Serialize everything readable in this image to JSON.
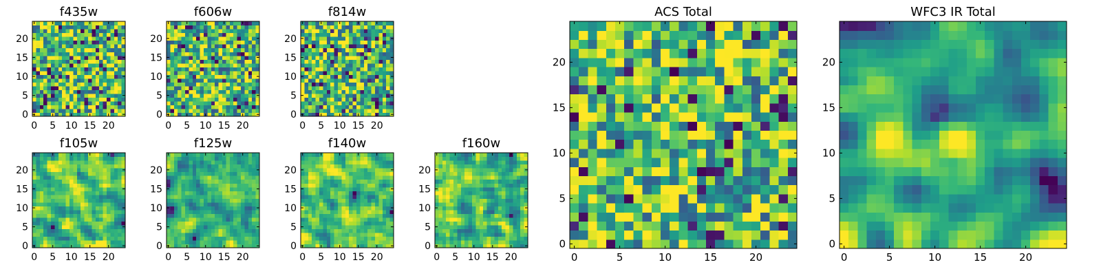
{
  "chart_data": {
    "type": "heatmap",
    "colormap": "viridis",
    "colors": {
      "low": "#440154",
      "mid": "#21918c",
      "high": "#fde725",
      "axis": "#000000"
    },
    "panels": [
      {
        "title": "f435w",
        "grid": 25,
        "xlim": [
          -0.5,
          24.5
        ],
        "ylim": [
          -0.5,
          24.5
        ],
        "xticks": [
          0,
          5,
          10,
          15,
          20
        ],
        "yticks": [
          0,
          5,
          10,
          15,
          20
        ],
        "seed": 435,
        "smooth": 0,
        "mean": 0.7
      },
      {
        "title": "f606w",
        "grid": 25,
        "xlim": [
          -0.5,
          24.5
        ],
        "ylim": [
          -0.5,
          24.5
        ],
        "xticks": [
          0,
          5,
          10,
          15,
          20
        ],
        "yticks": [
          0,
          5,
          10,
          15,
          20
        ],
        "seed": 606,
        "smooth": 0,
        "mean": 0.66
      },
      {
        "title": "f814w",
        "grid": 25,
        "xlim": [
          -0.5,
          24.5
        ],
        "ylim": [
          -0.5,
          24.5
        ],
        "xticks": [
          0,
          5,
          10,
          15,
          20
        ],
        "yticks": [
          0,
          5,
          10,
          15,
          20
        ],
        "seed": 814,
        "smooth": 0,
        "mean": 0.66
      },
      {
        "title": "f105w",
        "grid": 25,
        "xlim": [
          -0.5,
          24.5
        ],
        "ylim": [
          -0.5,
          24.5
        ],
        "xticks": [
          0,
          5,
          10,
          15,
          20
        ],
        "yticks": [
          0,
          5,
          10,
          15,
          20
        ],
        "seed": 105,
        "smooth": 1,
        "mean": 0.72
      },
      {
        "title": "f125w",
        "grid": 25,
        "xlim": [
          -0.5,
          24.5
        ],
        "ylim": [
          -0.5,
          24.5
        ],
        "xticks": [
          0,
          5,
          10,
          15,
          20
        ],
        "yticks": [
          0,
          5,
          10,
          15,
          20
        ],
        "seed": 125,
        "smooth": 1,
        "mean": 0.68
      },
      {
        "title": "f140w",
        "grid": 25,
        "xlim": [
          -0.5,
          24.5
        ],
        "ylim": [
          -0.5,
          24.5
        ],
        "xticks": [
          0,
          5,
          10,
          15,
          20
        ],
        "yticks": [
          0,
          5,
          10,
          15,
          20
        ],
        "seed": 140,
        "smooth": 1,
        "mean": 0.74
      },
      {
        "title": "f160w",
        "grid": 25,
        "xlim": [
          -0.5,
          24.5
        ],
        "ylim": [
          -0.5,
          24.5
        ],
        "xticks": [
          0,
          5,
          10,
          15,
          20
        ],
        "yticks": [
          0,
          5,
          10,
          15,
          20
        ],
        "seed": 160,
        "smooth": 1,
        "mean": 0.72
      },
      {
        "title": "ACS Total",
        "grid": 25,
        "xlim": [
          -0.5,
          24.5
        ],
        "ylim": [
          -0.5,
          24.5
        ],
        "xticks": [
          0,
          5,
          10,
          15,
          20
        ],
        "yticks": [
          0,
          5,
          10,
          15,
          20
        ],
        "seed": 1000,
        "smooth": 0,
        "mean": 0.68
      },
      {
        "title": "WFC3 IR Total",
        "grid": 25,
        "xlim": [
          -0.5,
          24.5
        ],
        "ylim": [
          -0.5,
          24.5
        ],
        "xticks": [
          0,
          5,
          10,
          15,
          20
        ],
        "yticks": [
          0,
          5,
          10,
          15,
          20
        ],
        "seed": 2000,
        "smooth": 2,
        "mean": 0.62,
        "bright_spot": {
          "x": 12,
          "y": 12,
          "amp": 0.35
        }
      }
    ]
  }
}
